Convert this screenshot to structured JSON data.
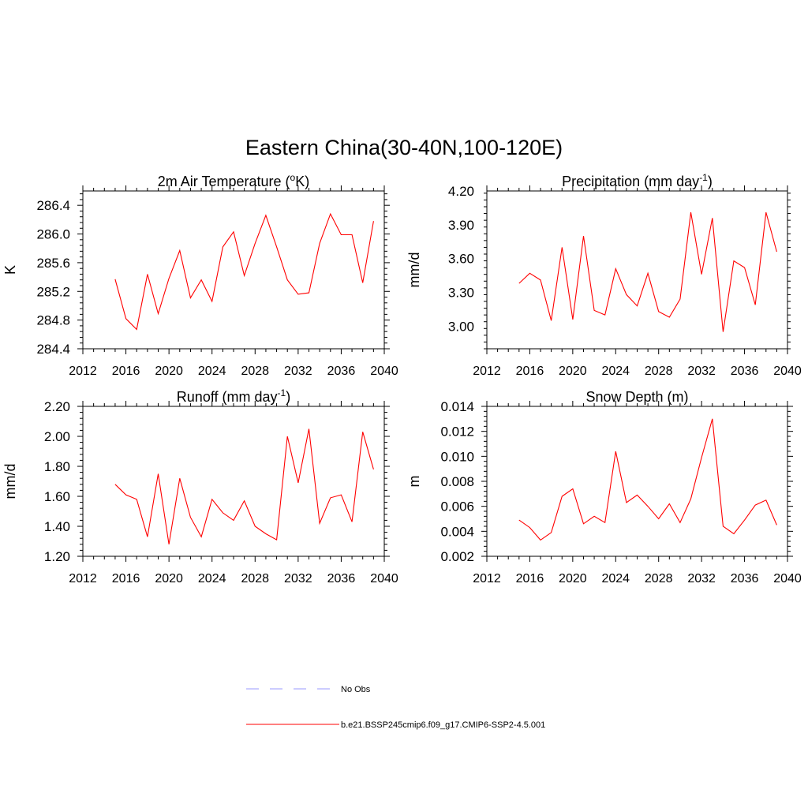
{
  "figure": {
    "title": "Eastern China(30-40N,100-120E)"
  },
  "legend": {
    "entries": [
      {
        "label": "No Obs",
        "color": "#9999ff",
        "dash": "dashed"
      },
      {
        "label": "b.e21.BSSP245cmip6.f09_g17.CMIP6-SSP2-4.5.001",
        "color": "#ff0000",
        "dash": "solid"
      }
    ]
  },
  "chart_data": [
    {
      "type": "line",
      "title": "2m Air Temperature (",
      "title_sup": "o",
      "title_after": "K)",
      "ylabel": "K",
      "xlim": [
        2012,
        2040
      ],
      "ylim": [
        284.4,
        286.6
      ],
      "x_ticks": [
        2012,
        2016,
        2020,
        2024,
        2028,
        2032,
        2036,
        2040
      ],
      "y_ticks": [
        284.4,
        284.8,
        285.2,
        285.6,
        286.0,
        286.4
      ],
      "y_tick_labels": [
        "284.4",
        "284.8",
        "285.2",
        "285.6",
        "286.0",
        "286.4"
      ],
      "x": [
        2015,
        2016,
        2017,
        2018,
        2019,
        2020,
        2021,
        2022,
        2023,
        2024,
        2025,
        2026,
        2027,
        2028,
        2029,
        2030,
        2031,
        2032,
        2033,
        2034,
        2035,
        2036,
        2037,
        2038,
        2039
      ],
      "series": [
        {
          "name": "b.e21.BSSP245cmip6.f09_g17.CMIP6-SSP2-4.5.001",
          "color": "#ff0000",
          "values": [
            285.37,
            284.82,
            284.67,
            285.44,
            284.89,
            285.38,
            285.77,
            285.11,
            285.36,
            285.06,
            285.82,
            286.03,
            285.42,
            285.87,
            286.26,
            285.82,
            285.36,
            285.16,
            285.18,
            285.87,
            286.28,
            285.99,
            285.99,
            285.32,
            286.18
          ]
        }
      ]
    },
    {
      "type": "line",
      "title": "Precipitation (mm day",
      "title_sup": "-1",
      "title_after": ")",
      "ylabel": "mm/d",
      "xlim": [
        2012,
        2040
      ],
      "ylim": [
        2.8,
        4.2
      ],
      "x_ticks": [
        2012,
        2016,
        2020,
        2024,
        2028,
        2032,
        2036,
        2040
      ],
      "y_ticks": [
        3.0,
        3.3,
        3.6,
        3.9,
        4.2
      ],
      "y_tick_labels": [
        "3.00",
        "3.30",
        "3.60",
        "3.90",
        "4.20"
      ],
      "x": [
        2015,
        2016,
        2017,
        2018,
        2019,
        2020,
        2021,
        2022,
        2023,
        2024,
        2025,
        2026,
        2027,
        2028,
        2029,
        2030,
        2031,
        2032,
        2033,
        2034,
        2035,
        2036,
        2037,
        2038,
        2039
      ],
      "series": [
        {
          "name": "b.e21.BSSP245cmip6.f09_g17.CMIP6-SSP2-4.5.001",
          "color": "#ff0000",
          "values": [
            3.38,
            3.47,
            3.41,
            3.05,
            3.7,
            3.06,
            3.8,
            3.14,
            3.1,
            3.51,
            3.28,
            3.18,
            3.47,
            3.13,
            3.08,
            3.24,
            4.01,
            3.46,
            3.96,
            2.95,
            3.58,
            3.52,
            3.19,
            4.01,
            3.66
          ]
        }
      ]
    },
    {
      "type": "line",
      "title": "Runoff (mm day",
      "title_sup": "-1",
      "title_after": ")",
      "ylabel": "mm/d",
      "xlim": [
        2012,
        2040
      ],
      "ylim": [
        1.2,
        2.2
      ],
      "x_ticks": [
        2012,
        2016,
        2020,
        2024,
        2028,
        2032,
        2036,
        2040
      ],
      "y_ticks": [
        1.2,
        1.4,
        1.6,
        1.8,
        2.0,
        2.2
      ],
      "y_tick_labels": [
        "1.20",
        "1.40",
        "1.60",
        "1.80",
        "2.00",
        "2.20"
      ],
      "x": [
        2015,
        2016,
        2017,
        2018,
        2019,
        2020,
        2021,
        2022,
        2023,
        2024,
        2025,
        2026,
        2027,
        2028,
        2029,
        2030,
        2031,
        2032,
        2033,
        2034,
        2035,
        2036,
        2037,
        2038,
        2039
      ],
      "series": [
        {
          "name": "b.e21.BSSP245cmip6.f09_g17.CMIP6-SSP2-4.5.001",
          "color": "#ff0000",
          "values": [
            1.68,
            1.61,
            1.58,
            1.33,
            1.75,
            1.28,
            1.72,
            1.46,
            1.33,
            1.58,
            1.49,
            1.44,
            1.57,
            1.4,
            1.35,
            1.31,
            2.0,
            1.69,
            2.05,
            1.42,
            1.59,
            1.61,
            1.43,
            2.03,
            1.78
          ]
        }
      ]
    },
    {
      "type": "line",
      "title": "Snow Depth (m)",
      "title_sup": "",
      "title_after": "",
      "ylabel": "m",
      "xlim": [
        2012,
        2040
      ],
      "ylim": [
        0.002,
        0.014
      ],
      "x_ticks": [
        2012,
        2016,
        2020,
        2024,
        2028,
        2032,
        2036,
        2040
      ],
      "y_ticks": [
        0.002,
        0.004,
        0.006,
        0.008,
        0.01,
        0.012,
        0.014
      ],
      "y_tick_labels": [
        "0.002",
        "0.004",
        "0.006",
        "0.008",
        "0.010",
        "0.012",
        "0.014"
      ],
      "x": [
        2015,
        2016,
        2017,
        2018,
        2019,
        2020,
        2021,
        2022,
        2023,
        2024,
        2025,
        2026,
        2027,
        2028,
        2029,
        2030,
        2031,
        2032,
        2033,
        2034,
        2035,
        2036,
        2037,
        2038,
        2039
      ],
      "series": [
        {
          "name": "b.e21.BSSP245cmip6.f09_g17.CMIP6-SSP2-4.5.001",
          "color": "#ff0000",
          "values": [
            0.0049,
            0.0043,
            0.0033,
            0.0039,
            0.0068,
            0.0074,
            0.0046,
            0.0052,
            0.0047,
            0.0104,
            0.0063,
            0.0069,
            0.006,
            0.005,
            0.0062,
            0.0047,
            0.0066,
            0.0099,
            0.013,
            0.0044,
            0.0038,
            0.0049,
            0.0061,
            0.0065,
            0.0045
          ]
        }
      ]
    }
  ]
}
